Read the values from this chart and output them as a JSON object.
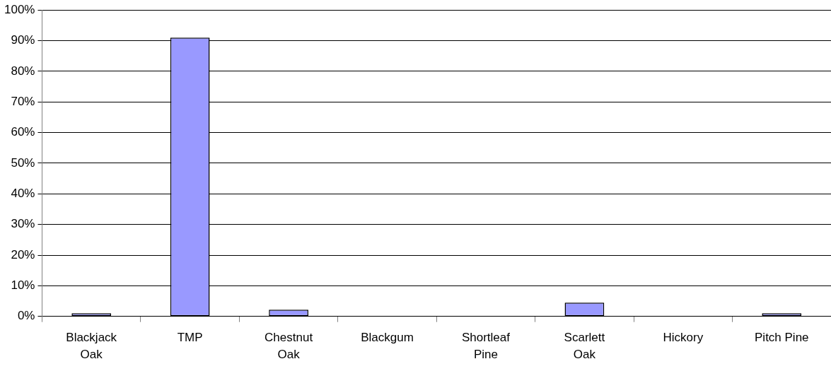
{
  "chart_data": {
    "type": "bar",
    "categories": [
      "Blackjack Oak",
      "TMP",
      "Chestnut Oak",
      "Blackgum",
      "Shortleaf Pine",
      "Scarlett Oak",
      "Hickory",
      "Pitch Pine"
    ],
    "values": [
      1,
      91,
      2.2,
      0,
      0,
      4.5,
      0,
      1
    ],
    "color": "#9999ff",
    "ylim": [
      0,
      100
    ],
    "yticks": [
      {
        "value": 0,
        "label": "0%"
      },
      {
        "value": 10,
        "label": "10%"
      },
      {
        "value": 20,
        "label": "20%"
      },
      {
        "value": 30,
        "label": "30%"
      },
      {
        "value": 40,
        "label": "40%"
      },
      {
        "value": 50,
        "label": "50%"
      },
      {
        "value": 60,
        "label": "60%"
      },
      {
        "value": 70,
        "label": "70%"
      },
      {
        "value": 80,
        "label": "80%"
      },
      {
        "value": 90,
        "label": "90%"
      },
      {
        "value": 100,
        "label": "100%"
      }
    ],
    "grid": "y",
    "legend": false
  }
}
